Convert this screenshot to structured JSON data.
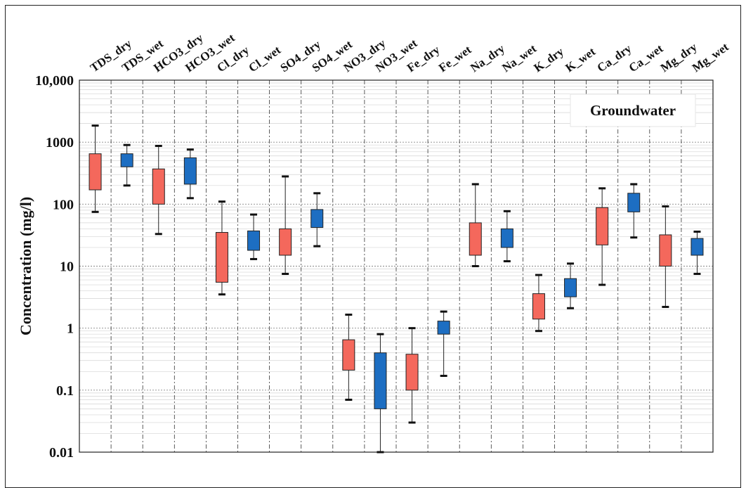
{
  "chart_data": {
    "type": "boxplot",
    "ylabel": "Concentration (mg/l)",
    "y_scale": "log",
    "ylim": [
      0.01,
      10000
    ],
    "y_ticks": [
      {
        "value": 10000,
        "label": "10,000"
      },
      {
        "value": 1000,
        "label": "1000"
      },
      {
        "value": 100,
        "label": "100"
      },
      {
        "value": 10,
        "label": "10"
      },
      {
        "value": 1,
        "label": "1"
      },
      {
        "value": 0.1,
        "label": "0.1"
      },
      {
        "value": 0.01,
        "label": "0.01"
      }
    ],
    "grid": true,
    "legend_box": {
      "text": "Groundwater",
      "position": "top-right"
    },
    "colors": {
      "dry": "#f4685c",
      "wet": "#1d6ec2"
    },
    "categories": [
      {
        "label": "TDS_dry",
        "season": "dry",
        "min": 75,
        "q1": 170,
        "q3": 650,
        "max": 1850
      },
      {
        "label": "TDS_wet",
        "season": "wet",
        "min": 200,
        "q1": 400,
        "q3": 650,
        "max": 900
      },
      {
        "label": "HCO3_dry",
        "season": "dry",
        "min": 33,
        "q1": 100,
        "q3": 370,
        "max": 870
      },
      {
        "label": "HCO3_wet",
        "season": "wet",
        "min": 125,
        "q1": 210,
        "q3": 560,
        "max": 760
      },
      {
        "label": "Cl_dry",
        "season": "dry",
        "min": 3.5,
        "q1": 5.5,
        "q3": 35,
        "max": 110
      },
      {
        "label": "Cl_wet",
        "season": "wet",
        "min": 13,
        "q1": 18,
        "q3": 37,
        "max": 68
      },
      {
        "label": "SO4_dry",
        "season": "dry",
        "min": 7.5,
        "q1": 15,
        "q3": 40,
        "max": 280
      },
      {
        "label": "SO4_wet",
        "season": "wet",
        "min": 21,
        "q1": 42,
        "q3": 82,
        "max": 150
      },
      {
        "label": "NO3_dry",
        "season": "dry",
        "min": 0.07,
        "q1": 0.21,
        "q3": 0.65,
        "max": 1.65
      },
      {
        "label": "NO3_wet",
        "season": "wet",
        "min": 0.01,
        "q1": 0.05,
        "q3": 0.4,
        "max": 0.8
      },
      {
        "label": "Fe_dry",
        "season": "dry",
        "min": 0.03,
        "q1": 0.1,
        "q3": 0.38,
        "max": 1.0
      },
      {
        "label": "Fe_wet",
        "season": "wet",
        "min": 0.17,
        "q1": 0.8,
        "q3": 1.3,
        "max": 1.85
      },
      {
        "label": "Na_dry",
        "season": "dry",
        "min": 10,
        "q1": 15,
        "q3": 50,
        "max": 210
      },
      {
        "label": "Na_wet",
        "season": "wet",
        "min": 12,
        "q1": 20,
        "q3": 40,
        "max": 77
      },
      {
        "label": "K_dry",
        "season": "dry",
        "min": 0.9,
        "q1": 1.4,
        "q3": 3.6,
        "max": 7.2
      },
      {
        "label": "K_wet",
        "season": "wet",
        "min": 2.1,
        "q1": 3.2,
        "q3": 6.3,
        "max": 11
      },
      {
        "label": "Ca_dry",
        "season": "dry",
        "min": 5,
        "q1": 22,
        "q3": 88,
        "max": 180
      },
      {
        "label": "Ca_wet",
        "season": "wet",
        "min": 29,
        "q1": 75,
        "q3": 150,
        "max": 210
      },
      {
        "label": "Mg_dry",
        "season": "dry",
        "min": 2.2,
        "q1": 10,
        "q3": 32,
        "max": 92
      },
      {
        "label": "Mg_wet",
        "season": "wet",
        "min": 7.5,
        "q1": 15,
        "q3": 28,
        "max": 36
      }
    ]
  }
}
